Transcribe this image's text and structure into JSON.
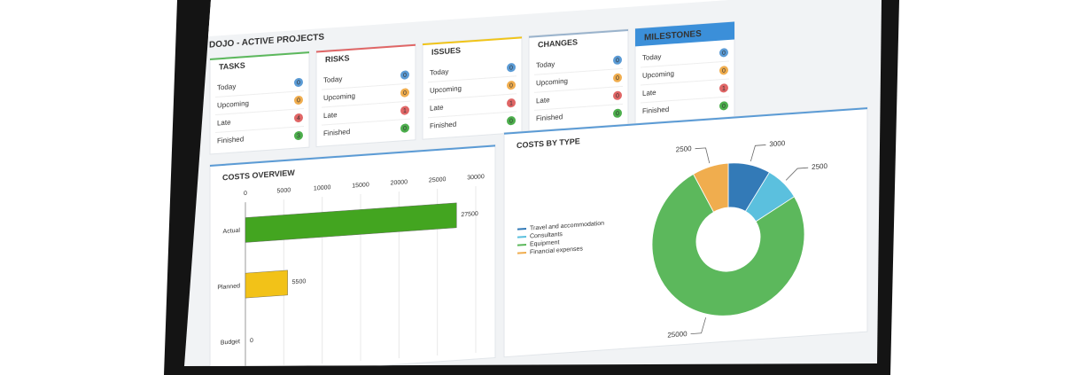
{
  "dashboard": {
    "title": "DOJO - ACTIVE PROJECTS",
    "panels": [
      {
        "title": "TASKS",
        "color": "#5cb85c",
        "rows": [
          {
            "label": "Today",
            "value": 0,
            "color": "#5b9bd5"
          },
          {
            "label": "Upcoming",
            "value": 0,
            "color": "#f0ad4e"
          },
          {
            "label": "Late",
            "value": 4,
            "color": "#e06666"
          },
          {
            "label": "Finished",
            "value": 3,
            "color": "#4cae4c"
          }
        ]
      },
      {
        "title": "RISKS",
        "color": "#e06666",
        "rows": [
          {
            "label": "Today",
            "value": 0,
            "color": "#5b9bd5"
          },
          {
            "label": "Upcoming",
            "value": 0,
            "color": "#f0ad4e"
          },
          {
            "label": "Late",
            "value": 1,
            "color": "#e06666"
          },
          {
            "label": "Finished",
            "value": 0,
            "color": "#4cae4c"
          }
        ]
      },
      {
        "title": "ISSUES",
        "color": "#f0c419",
        "rows": [
          {
            "label": "Today",
            "value": 0,
            "color": "#5b9bd5"
          },
          {
            "label": "Upcoming",
            "value": 0,
            "color": "#f0ad4e"
          },
          {
            "label": "Late",
            "value": 1,
            "color": "#e06666"
          },
          {
            "label": "Finished",
            "value": 0,
            "color": "#4cae4c"
          }
        ]
      },
      {
        "title": "CHANGES",
        "color": "#9ab3cc",
        "rows": [
          {
            "label": "Today",
            "value": 0,
            "color": "#5b9bd5"
          },
          {
            "label": "Upcoming",
            "value": 0,
            "color": "#f0ad4e"
          },
          {
            "label": "Late",
            "value": 0,
            "color": "#e06666"
          },
          {
            "label": "Finished",
            "value": 0,
            "color": "#4cae4c"
          }
        ]
      },
      {
        "title": "MILESTONES",
        "color": "#3b8fd9",
        "rows": [
          {
            "label": "Today",
            "value": 0,
            "color": "#5b9bd5"
          },
          {
            "label": "Upcoming",
            "value": 0,
            "color": "#f0ad4e"
          },
          {
            "label": "Late",
            "value": 1,
            "color": "#e06666"
          },
          {
            "label": "Finished",
            "value": 0,
            "color": "#4cae4c"
          }
        ]
      }
    ]
  },
  "chart_data": [
    {
      "type": "bar",
      "title": "COSTS OVERVIEW",
      "categories": [
        "Actual",
        "Planned",
        "Budget"
      ],
      "values": [
        27500,
        5500,
        0
      ],
      "colors": [
        "#43a520",
        "#f2c218",
        "#999999"
      ],
      "xlim": [
        0,
        30000
      ],
      "xticks": [
        0,
        5000,
        10000,
        15000,
        20000,
        25000,
        30000
      ],
      "grid": true
    },
    {
      "type": "pie",
      "title": "COSTS BY TYPE",
      "categories": [
        "Travel and accommodation",
        "Consultants",
        "Equipment",
        "Financial expenses"
      ],
      "values": [
        3000,
        2500,
        25000,
        2500
      ],
      "colors": [
        "#337ab7",
        "#5bc0de",
        "#5cb85c",
        "#f0ad4e"
      ],
      "donut": true
    }
  ]
}
